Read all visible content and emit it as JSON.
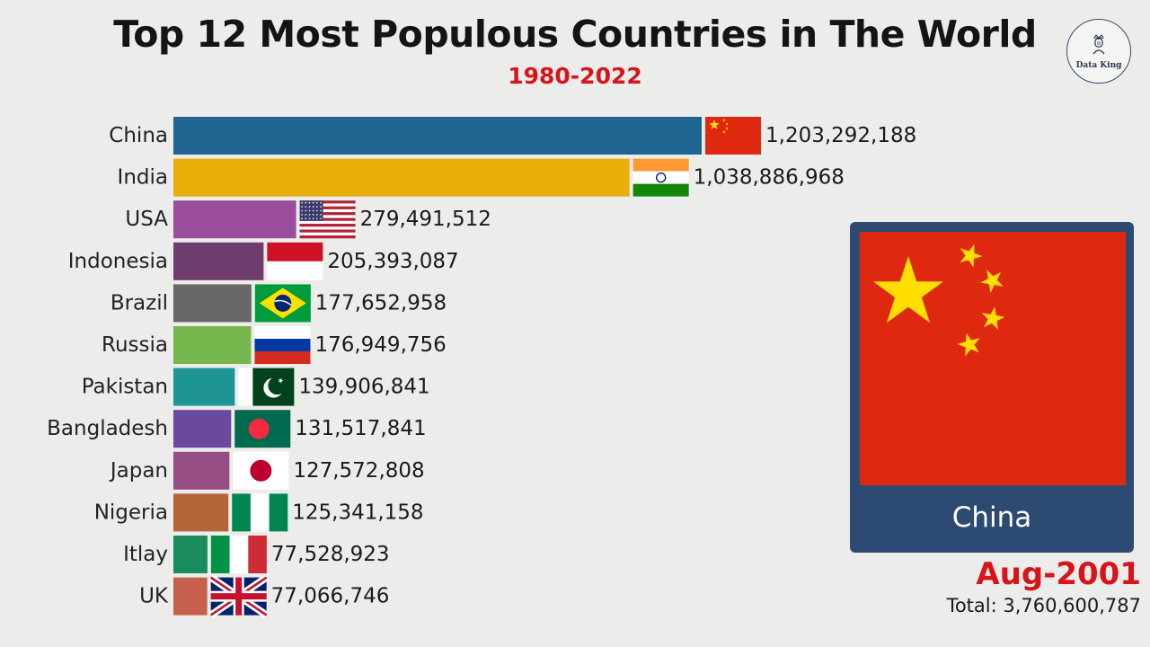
{
  "header": {
    "title": "Top 12 Most Populous Countries in The World",
    "subtitle": "1980-2022"
  },
  "logo": {
    "text": "Data King",
    "icon": "crowned-figure-icon"
  },
  "featured": {
    "name": "China",
    "flag": "china"
  },
  "footer": {
    "date": "Aug-2001",
    "total": "Total: 3,760,600,787"
  },
  "chart_data": {
    "type": "bar",
    "orientation": "horizontal",
    "categories": [
      "China",
      "India",
      "USA",
      "Indonesia",
      "Brazil",
      "Russia",
      "Pakistan",
      "Bangladesh",
      "Japan",
      "Nigeria",
      "Itlay",
      "UK"
    ],
    "values": [
      1203292188,
      1038886968,
      279491512,
      205393087,
      177652958,
      176949756,
      139906841,
      131517841,
      127572808,
      125341158,
      77528923,
      77066746
    ],
    "value_labels": [
      "1,203,292,188",
      "1,038,886,968",
      "279,491,512",
      "205,393,087",
      "177,652,958",
      "176,949,756",
      "139,906,841",
      "131,517,841",
      "127,572,808",
      "125,341,158",
      "77,528,923",
      "77,066,746"
    ],
    "colors": [
      "#1f6591",
      "#e8ae0a",
      "#9a4d9c",
      "#6e3d6e",
      "#676866",
      "#76b64c",
      "#1d9595",
      "#6a4a9c",
      "#974e85",
      "#b3663a",
      "#1a8b5c",
      "#c6604c"
    ],
    "flags": [
      "china",
      "india",
      "usa",
      "indonesia",
      "brazil",
      "russia",
      "pakistan",
      "bangladesh",
      "japan",
      "nigeria",
      "italy",
      "uk"
    ],
    "grid": false,
    "legend": "none"
  }
}
